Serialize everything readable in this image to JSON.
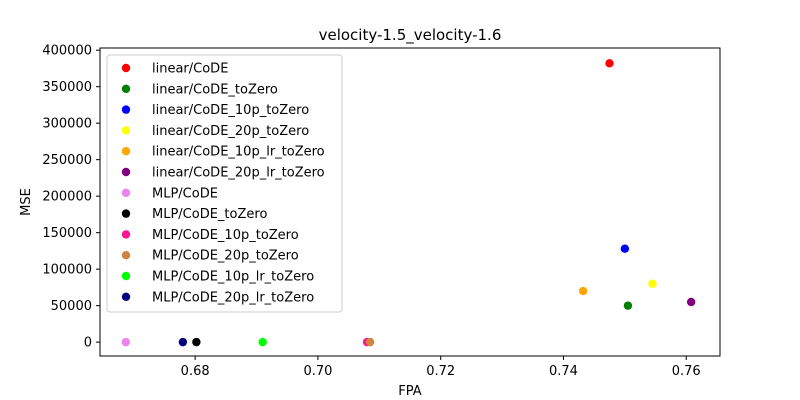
{
  "chart_data": {
    "type": "scatter",
    "title": "velocity-1.5_velocity-1.6",
    "xlabel": "FPA",
    "ylabel": "MSE",
    "xlim": [
      0.6645,
      0.7655
    ],
    "ylim": [
      -19000,
      403000
    ],
    "xticks": [
      0.68,
      0.7,
      0.72,
      0.74,
      0.76
    ],
    "xtick_labels": [
      "0.68",
      "0.70",
      "0.72",
      "0.74",
      "0.76"
    ],
    "yticks": [
      0,
      50000,
      100000,
      150000,
      200000,
      250000,
      300000,
      350000,
      400000
    ],
    "ytick_labels": [
      "0",
      "50000",
      "100000",
      "150000",
      "200000",
      "250000",
      "300000",
      "350000",
      "400000"
    ],
    "grid": false,
    "legend_position": "upper-left",
    "series": [
      {
        "name": "linear/CoDE",
        "color": "#ff0000",
        "points": [
          [
            0.7475,
            382000
          ]
        ]
      },
      {
        "name": "linear/CoDE_toZero",
        "color": "#008000",
        "points": [
          [
            0.7505,
            50000
          ]
        ]
      },
      {
        "name": "linear/CoDE_10p_toZero",
        "color": "#0000ff",
        "points": [
          [
            0.75,
            128000
          ]
        ]
      },
      {
        "name": "linear/CoDE_20p_toZero",
        "color": "#ffff00",
        "points": [
          [
            0.7545,
            80000
          ]
        ]
      },
      {
        "name": "linear/CoDE_10p_lr_toZero",
        "color": "#ffa500",
        "points": [
          [
            0.7432,
            70000
          ]
        ]
      },
      {
        "name": "linear/CoDE_20p_lr_toZero",
        "color": "#800080",
        "points": [
          [
            0.7608,
            55000
          ]
        ]
      },
      {
        "name": "MLP/CoDE",
        "color": "#ee82ee",
        "points": [
          [
            0.6687,
            0
          ]
        ]
      },
      {
        "name": "MLP/CoDE_toZero",
        "color": "#000000",
        "points": [
          [
            0.6802,
            0
          ]
        ]
      },
      {
        "name": "MLP/CoDE_10p_toZero",
        "color": "#ff1493",
        "points": [
          [
            0.708,
            0
          ]
        ]
      },
      {
        "name": "MLP/CoDE_20p_toZero",
        "color": "#cd853f",
        "points": [
          [
            0.7085,
            0
          ]
        ]
      },
      {
        "name": "MLP/CoDE_10p_lr_toZero",
        "color": "#00ff00",
        "points": [
          [
            0.691,
            0
          ]
        ]
      },
      {
        "name": "MLP/CoDE_20p_lr_toZero",
        "color": "#000080",
        "points": [
          [
            0.678,
            0
          ]
        ]
      }
    ]
  }
}
